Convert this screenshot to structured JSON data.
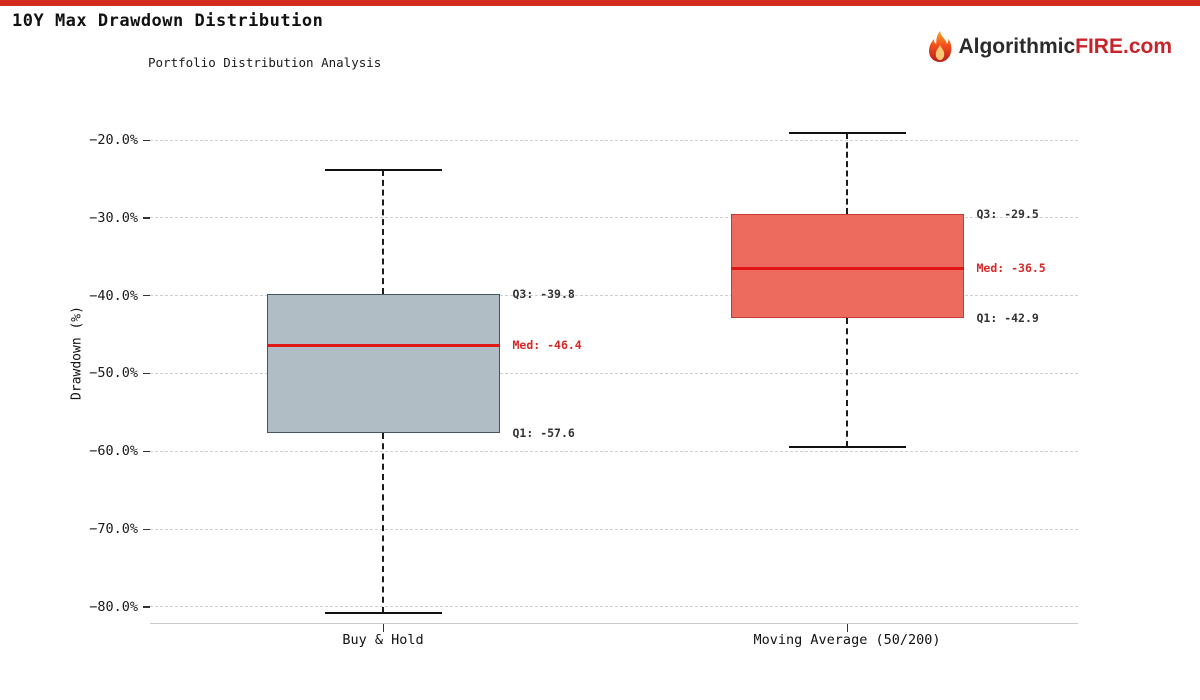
{
  "header": {
    "title": "10Y Max Drawdown Distribution"
  },
  "logo": {
    "icon": "flame-icon",
    "prefix": "Algorithmic",
    "highlight": "FIRE",
    "suffix": ".com"
  },
  "colors": {
    "accent_bar": "#d32b20",
    "logo_dark": "#2b2b2b",
    "logo_red": "#c8232a",
    "grid": "#cfcfcf",
    "axis_line": "#cccccc",
    "tick": "#333333",
    "annotation_text": "#333333",
    "annotation_median_text": "#d62728",
    "whisker": "#1c1c1c"
  },
  "chart_data": {
    "type": "boxplot",
    "title": "10Y Max Drawdown Distribution",
    "subtitle": "Portfolio Distribution Analysis",
    "ylabel": "Drawdown (%)",
    "ylim": [
      -82,
      -17
    ],
    "grid": "horizontal-dashed",
    "yticks": [
      {
        "value": -20,
        "label": "−20.0%"
      },
      {
        "value": -30,
        "label": "−30.0%"
      },
      {
        "value": -40,
        "label": "−40.0%"
      },
      {
        "value": -50,
        "label": "−50.0%"
      },
      {
        "value": -60,
        "label": "−60.0%"
      },
      {
        "value": -70,
        "label": "−70.0%"
      },
      {
        "value": -80,
        "label": "−80.0%"
      }
    ],
    "categories": [
      "Buy & Hold",
      "Moving Average (50/200)"
    ],
    "series": [
      {
        "name": "Buy & Hold",
        "whisker_high": -23.8,
        "q3": -39.8,
        "median": -46.4,
        "q1": -57.6,
        "whisker_low": -80.8,
        "labels": {
          "q3": "Q3: -39.8",
          "med": "Med: -46.4",
          "q1": "Q1: -57.6"
        },
        "fill": "#b0bdc4",
        "border": "#46565f",
        "median_color": "#e01818"
      },
      {
        "name": "Moving Average (50/200)",
        "whisker_high": -19.1,
        "q3": -29.5,
        "median": -36.5,
        "q1": -42.9,
        "whisker_low": -59.5,
        "labels": {
          "q3": "Q3: -29.5",
          "med": "Med: -36.5",
          "q1": "Q1: -42.9"
        },
        "fill": "#ed6a5e",
        "border": "#c43c30",
        "median_color": "#e01414"
      }
    ]
  }
}
